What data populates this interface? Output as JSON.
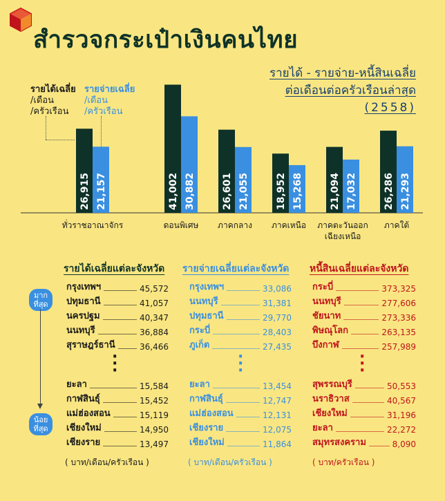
{
  "header": {
    "title": "สำรวจกระเป๋าเงินคนไทย",
    "subtitle_line1": "รายได้ - รายจ่าย-หนี้สินเฉลี่ย",
    "subtitle_line2": "ต่อเดือนต่อครัวเรือนล่าสุด",
    "subtitle_year": "(2558)"
  },
  "legend": {
    "income_title": "รายได้เฉลี่ย",
    "income_sub1": "/เดือน",
    "income_sub2": "/ครัวเรือน",
    "expense_title": "รายจ่ายเฉลี่ย",
    "expense_sub1": "/เดือน",
    "expense_sub2": "/ครัวเรือน"
  },
  "colors": {
    "background": "#f9e682",
    "income_bar": "#0f3228",
    "expense_bar": "#3a8fe0",
    "debt_text": "#c0141c",
    "axis": "#333333"
  },
  "chart_data": {
    "type": "bar",
    "title": "สำรวจกระเป๋าเงินคนไทย",
    "categories": [
      "ทั่วราชอาณาจักร",
      "ดอนพิเศษ",
      "ภาคกลาง",
      "ภาคเหนือ",
      "ภาคตะวันออกเฉียงเหนือ",
      "ภาคใต้"
    ],
    "category_lines": [
      [
        "ทั่วราชอาณาจักร"
      ],
      [
        "ดอนพิเศษ"
      ],
      [
        "ภาคกลาง"
      ],
      [
        "ภาคเหนือ"
      ],
      [
        "ภาคตะวันออก",
        "เฉียงเหนือ"
      ],
      [
        "ภาคใต้"
      ]
    ],
    "series": [
      {
        "name": "รายได้เฉลี่ย",
        "values": [
          26915,
          41002,
          26601,
          18952,
          21094,
          26286
        ],
        "labels": [
          "26,915",
          "41,002",
          "26,601",
          "18,952",
          "21,094",
          "26,286"
        ]
      },
      {
        "name": "รายจ่ายเฉลี่ย",
        "values": [
          21157,
          30882,
          21055,
          15268,
          17032,
          21293
        ],
        "labels": [
          "21,157",
          "30,882",
          "21,055",
          "15,268",
          "17,032",
          "21,293"
        ]
      }
    ],
    "ylim": [
      0,
      42000
    ],
    "xlabel": "",
    "ylabel": ""
  },
  "rank_labels": {
    "most": [
      "มาก",
      "ที่สุด"
    ],
    "least": [
      "น้อย",
      "ที่สุด"
    ]
  },
  "tables": {
    "income": {
      "title": "รายได้เฉลี่ยแต่ละจังหวัด",
      "top": [
        {
          "name": "กรุงเทพฯ",
          "value": "45,572"
        },
        {
          "name": "ปทุมธานี",
          "value": "41,057"
        },
        {
          "name": "นครปฐม",
          "value": "40,347"
        },
        {
          "name": "นนทบุรี",
          "value": "36,884"
        },
        {
          "name": "สุราษฎร์ธานี",
          "value": "36,466"
        }
      ],
      "bottom": [
        {
          "name": "ยะลา",
          "value": "15,584"
        },
        {
          "name": "กาฬสินธุ์",
          "value": "15,452"
        },
        {
          "name": "แม่ฮ่องสอน",
          "value": "15,119"
        },
        {
          "name": "เชียงใหม่",
          "value": "14,950"
        },
        {
          "name": "เชียงราย",
          "value": "13,497"
        }
      ],
      "unit": "( บาท/เดือน/ครัวเรือน )"
    },
    "expense": {
      "title": "รายจ่ายเฉลี่ยแต่ละจังหวัด",
      "top": [
        {
          "name": "กรุงเทพฯ",
          "value": "33,086"
        },
        {
          "name": "นนทบุรี",
          "value": "31,381"
        },
        {
          "name": "ปทุมธานี",
          "value": "29,770"
        },
        {
          "name": "กระบี่",
          "value": "28,403"
        },
        {
          "name": "ภูเก็ต",
          "value": "27,435"
        }
      ],
      "bottom": [
        {
          "name": "ยะลา",
          "value": "13,454"
        },
        {
          "name": "กาฬสินธุ์",
          "value": "12,747"
        },
        {
          "name": "แม่ฮ่องสอน",
          "value": "12,131"
        },
        {
          "name": "เชียงราย",
          "value": "12,075"
        },
        {
          "name": "เชียงใหม่",
          "value": "11,864"
        }
      ],
      "unit": "( บาท/เดือน/ครัวเรือน )"
    },
    "debt": {
      "title": "หนี้สินเฉลี่ยแต่ละจังหวัด",
      "top": [
        {
          "name": "กระบี่",
          "value": "373,325"
        },
        {
          "name": "นนทบุรี",
          "value": "277,606"
        },
        {
          "name": "ชัยนาท",
          "value": "273,336"
        },
        {
          "name": "พิษณุโลก",
          "value": "263,135"
        },
        {
          "name": "บึงกาฬ",
          "value": "257,989"
        }
      ],
      "bottom": [
        {
          "name": "สุพรรณบุรี",
          "value": "50,553"
        },
        {
          "name": "นราธิวาส",
          "value": "40,567"
        },
        {
          "name": "เชียงใหม่",
          "value": "31,196"
        },
        {
          "name": "ยะลา",
          "value": "22,272"
        },
        {
          "name": "สมุทรสงคราม",
          "value": "8,090"
        }
      ],
      "unit": "( บาท/ครัวเรือน )"
    }
  }
}
